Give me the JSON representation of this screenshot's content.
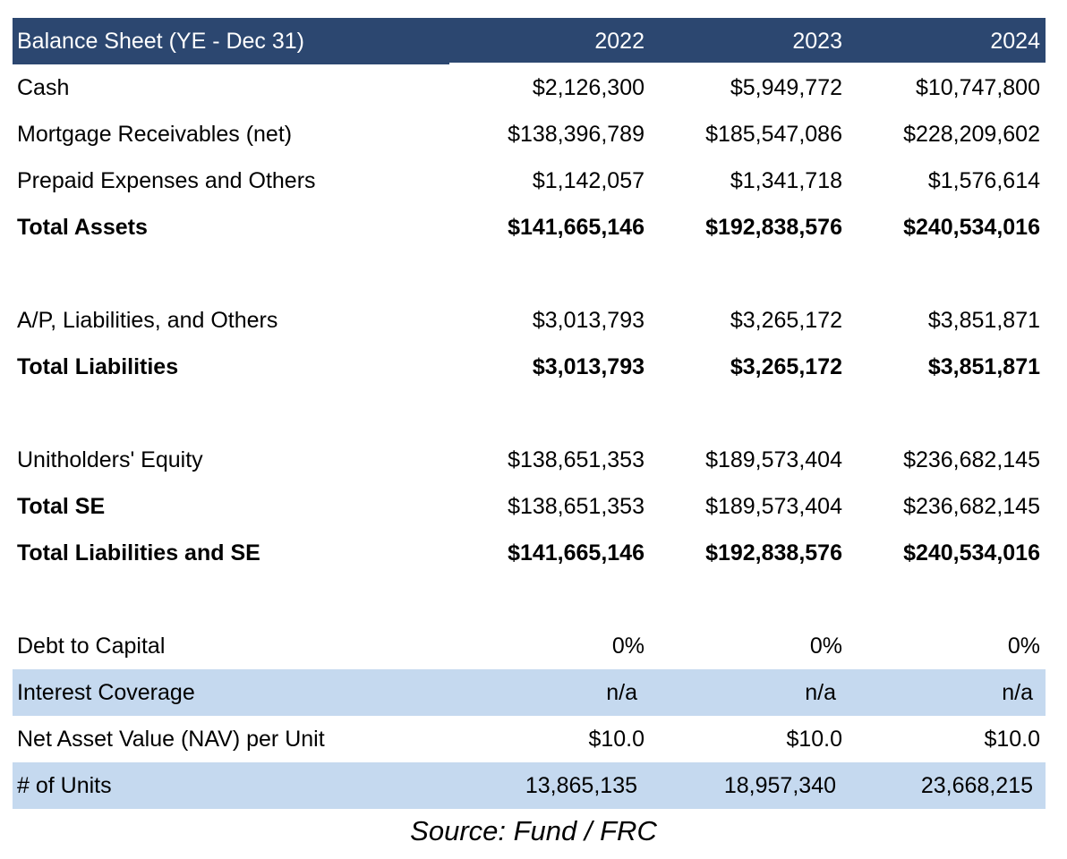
{
  "table": {
    "header": {
      "label": "Balance Sheet (YE - Dec 31)",
      "years": [
        "2022",
        "2023",
        "2024"
      ]
    },
    "rows": [
      {
        "label": "Cash",
        "values": [
          "$2,126,300",
          "$5,949,772",
          "$10,747,800"
        ]
      },
      {
        "label": "Mortgage Receivables (net)",
        "values": [
          "$138,396,789",
          "$185,547,086",
          "$228,209,602"
        ]
      },
      {
        "label": "Prepaid Expenses and Others",
        "values": [
          "$1,142,057",
          "$1,341,718",
          "$1,576,614"
        ]
      },
      {
        "label": "Total Assets",
        "values": [
          "$141,665,146",
          "$192,838,576",
          "$240,534,016"
        ]
      },
      {
        "label": "A/P, Liabilities, and Others",
        "values": [
          "$3,013,793",
          "$3,265,172",
          "$3,851,871"
        ]
      },
      {
        "label": "Total Liabilities",
        "values": [
          "$3,013,793",
          "$3,265,172",
          "$3,851,871"
        ]
      },
      {
        "label": "Unitholders' Equity",
        "values": [
          "$138,651,353",
          "$189,573,404",
          "$236,682,145"
        ]
      },
      {
        "label": "Total SE",
        "values": [
          "$138,651,353",
          "$189,573,404",
          "$236,682,145"
        ]
      },
      {
        "label": "Total Liabilities and SE",
        "values": [
          "$141,665,146",
          "$192,838,576",
          "$240,534,016"
        ]
      },
      {
        "label": "Debt to Capital",
        "values": [
          "0%",
          "0%",
          "0%"
        ]
      },
      {
        "label": "Interest Coverage",
        "values": [
          "n/a",
          "n/a",
          "n/a"
        ]
      },
      {
        "label": "Net Asset Value (NAV) per Unit",
        "values": [
          "$10.0",
          "$10.0",
          "$10.0"
        ]
      },
      {
        "label": "# of Units",
        "values": [
          "13,865,135",
          "18,957,340",
          "23,668,215"
        ]
      }
    ]
  },
  "source": "Source: Fund / FRC",
  "colors": {
    "header_bg": "#2c4770",
    "shaded_bg": "#c5d9ef"
  }
}
